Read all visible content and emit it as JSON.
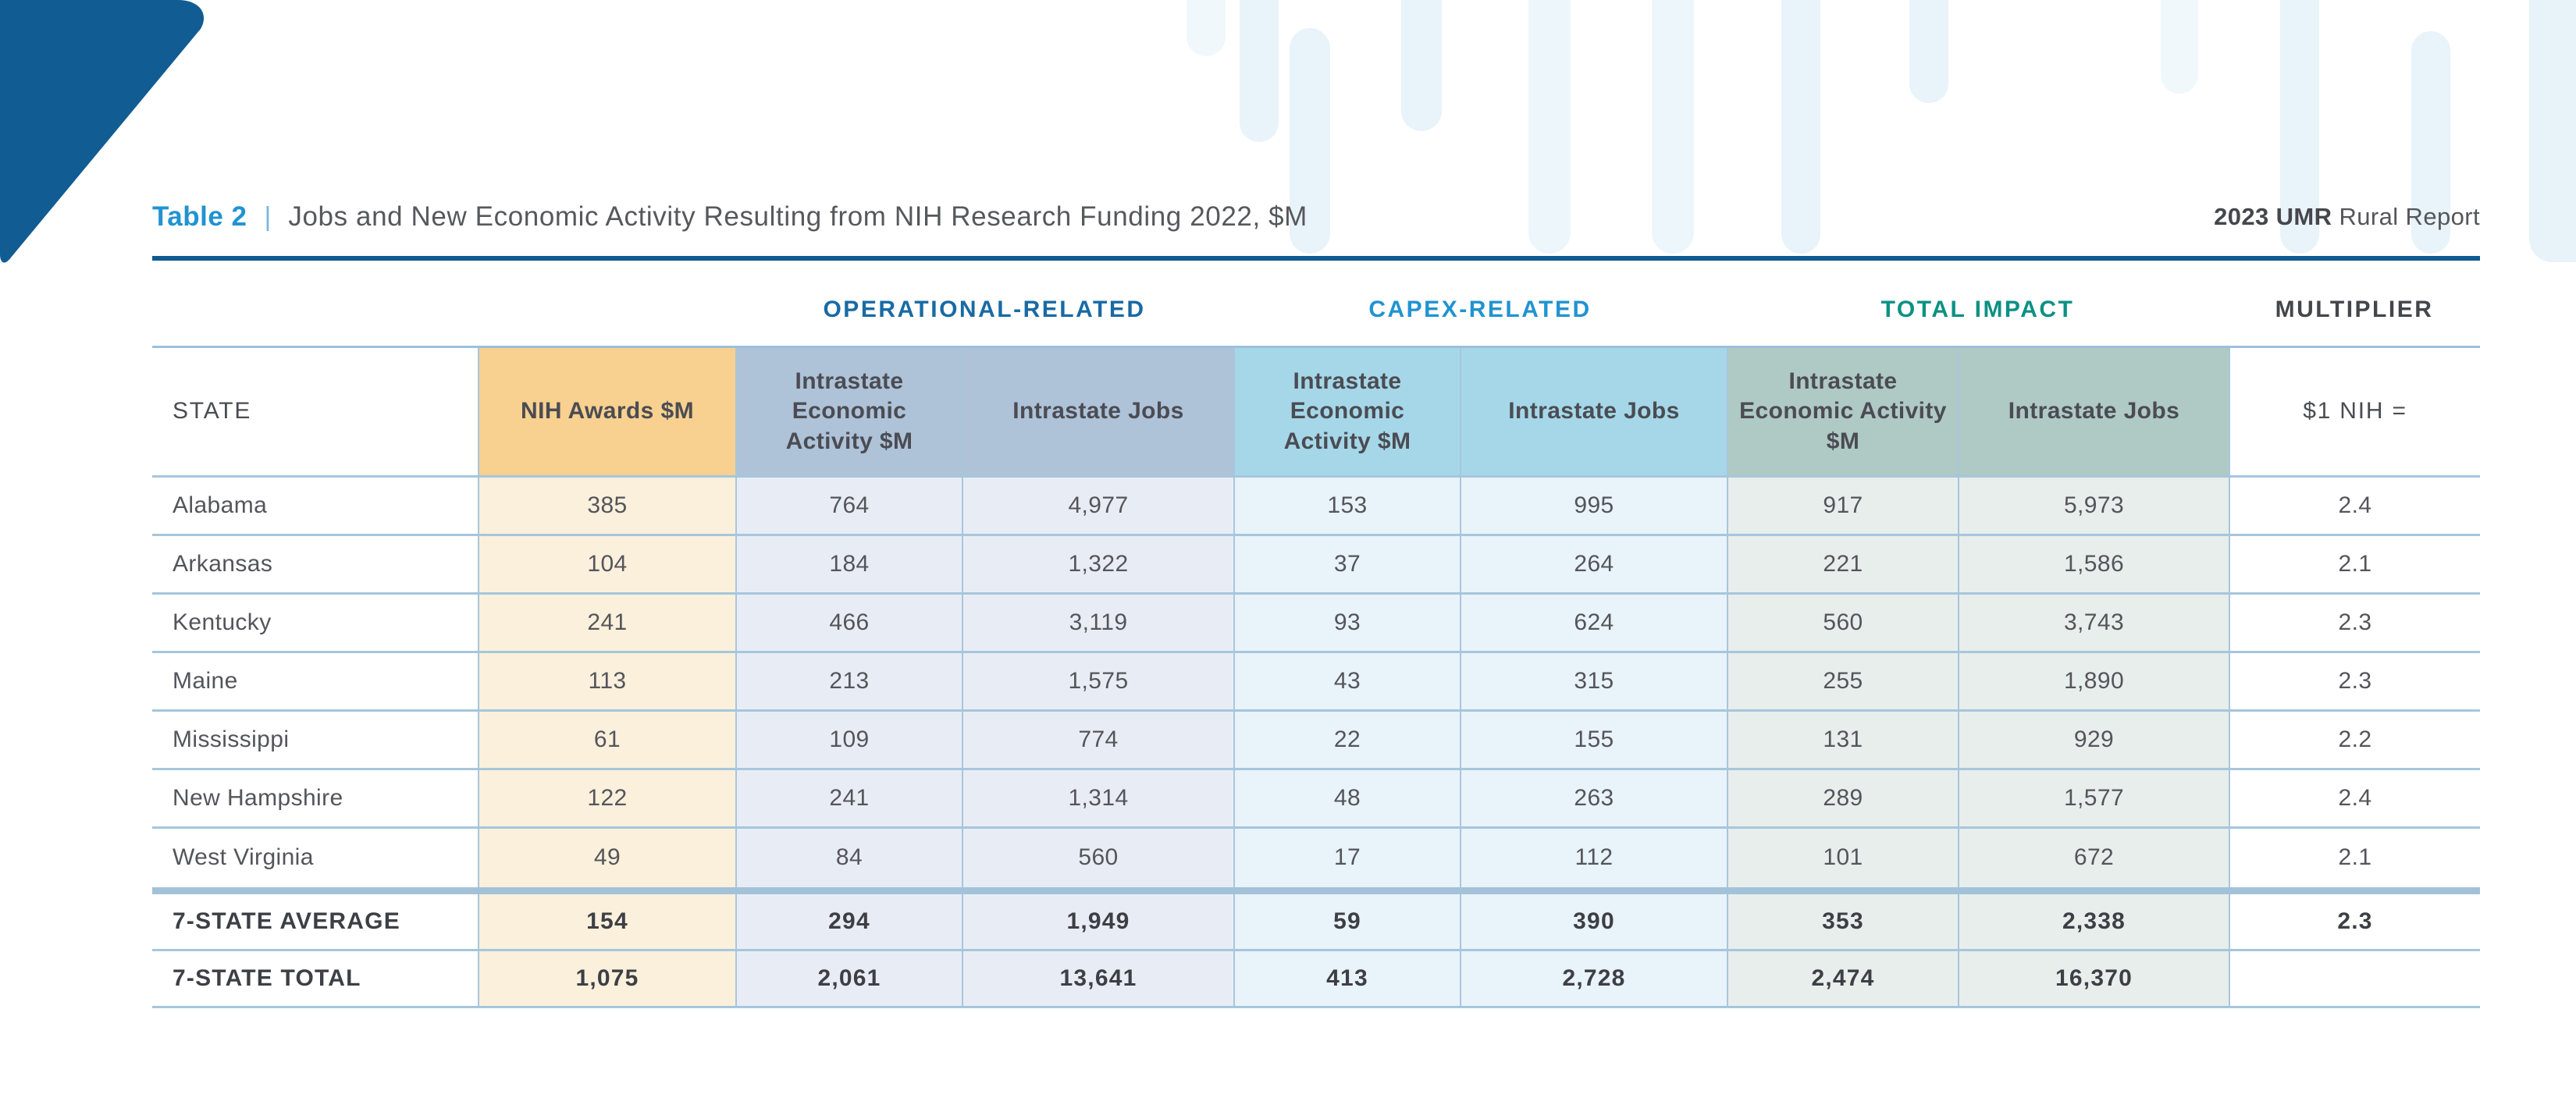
{
  "header": {
    "table_label": "Table 2",
    "separator": "|",
    "title": "Jobs and New Economic Activity Resulting from NIH Research Funding 2022, $M",
    "report_bold": "2023 UMR",
    "report_regular": " Rural Report"
  },
  "colors": {
    "accent_blue_dark": "#0F5A90",
    "accent_blue_bright": "#2193D1",
    "operational_header": "#AEC2D8",
    "capex_header": "#A5D7E8",
    "total_header": "#AFC9C5",
    "nih_header": "#F8D08F",
    "decor_bar": "#E9F3FA"
  },
  "table": {
    "group_headers": [
      {
        "id": "operational",
        "label": "OPERATIONAL-RELATED",
        "color": "#186AA5"
      },
      {
        "id": "capex",
        "label": "CAPEX-RELATED",
        "color": "#2193D1"
      },
      {
        "id": "total",
        "label": "TOTAL IMPACT",
        "color": "#0A9183"
      },
      {
        "id": "multiplier",
        "label": "MULTIPLIER",
        "color": "#45464B"
      }
    ],
    "columns": [
      "STATE",
      "NIH Awards $M",
      "Intrastate Economic Activity $M",
      "Intrastate Jobs",
      "Intrastate Economic Activity $M",
      "Intrastate Jobs",
      "Intrastate Economic Activity $M",
      "Intrastate Jobs",
      "$1 NIH ="
    ],
    "rows": [
      {
        "state": "Alabama",
        "values": [
          "385",
          "764",
          "4,977",
          "153",
          "995",
          "917",
          "5,973",
          "2.4"
        ]
      },
      {
        "state": "Arkansas",
        "values": [
          "104",
          "184",
          "1,322",
          "37",
          "264",
          "221",
          "1,586",
          "2.1"
        ]
      },
      {
        "state": "Kentucky",
        "values": [
          "241",
          "466",
          "3,119",
          "93",
          "624",
          "560",
          "3,743",
          "2.3"
        ]
      },
      {
        "state": "Maine",
        "values": [
          "113",
          "213",
          "1,575",
          "43",
          "315",
          "255",
          "1,890",
          "2.3"
        ]
      },
      {
        "state": "Mississippi",
        "values": [
          "61",
          "109",
          "774",
          "22",
          "155",
          "131",
          "929",
          "2.2"
        ]
      },
      {
        "state": "New Hampshire",
        "values": [
          "122",
          "241",
          "1,314",
          "48",
          "263",
          "289",
          "1,577",
          "2.4"
        ]
      },
      {
        "state": "West Virginia",
        "values": [
          "49",
          "84",
          "560",
          "17",
          "112",
          "101",
          "672",
          "2.1"
        ]
      }
    ],
    "summary_rows": [
      {
        "state": "7-STATE AVERAGE",
        "values": [
          "154",
          "294",
          "1,949",
          "59",
          "390",
          "353",
          "2,338",
          "2.3"
        ]
      },
      {
        "state": "7-STATE TOTAL",
        "values": [
          "1,075",
          "2,061",
          "13,641",
          "413",
          "2,728",
          "2,474",
          "16,370",
          ""
        ]
      }
    ]
  }
}
